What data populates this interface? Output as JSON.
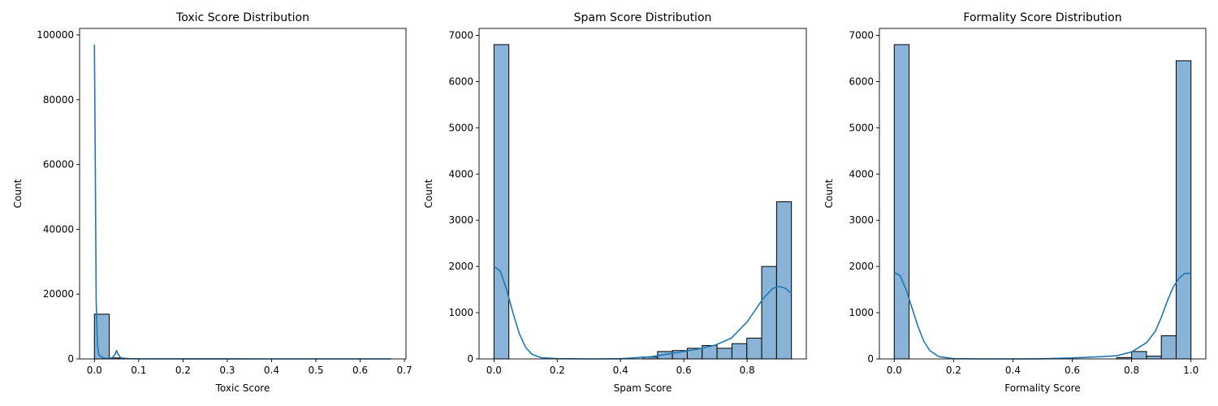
{
  "figure": {
    "background": "#ffffff",
    "bar_fill": "#89b4d7",
    "bar_stroke": "#000000",
    "kde_color": "#1f77b4"
  },
  "chart_data": [
    {
      "type": "bar",
      "subtype": "histogram_with_kde",
      "title": "Toxic Score Distribution",
      "xlabel": "Toxic Score",
      "ylabel": "Count",
      "xlim": [
        -0.0335,
        0.7035
      ],
      "ylim": [
        0,
        102000
      ],
      "xticks": [
        0.0,
        0.1,
        0.2,
        0.3,
        0.4,
        0.5,
        0.6,
        0.7
      ],
      "xtick_labels": [
        "0.0",
        "0.1",
        "0.2",
        "0.3",
        "0.4",
        "0.5",
        "0.6",
        "0.7"
      ],
      "yticks": [
        0,
        20000,
        40000,
        60000,
        80000,
        100000
      ],
      "ytick_labels": [
        "0",
        "20000",
        "40000",
        "60000",
        "80000",
        "100000"
      ],
      "bins": [
        {
          "x0": 0.0,
          "x1": 0.0335,
          "count": 13800
        },
        {
          "x0": 0.0335,
          "x1": 0.067,
          "count": 300
        },
        {
          "x0": 0.067,
          "x1": 0.1005,
          "count": 60
        },
        {
          "x0": 0.1005,
          "x1": 0.134,
          "count": 20
        }
      ],
      "kde": {
        "x": [
          0.0,
          0.002,
          0.004,
          0.007,
          0.01,
          0.02,
          0.03,
          0.04,
          0.047,
          0.05,
          0.053,
          0.06,
          0.08,
          0.1,
          0.2,
          0.3,
          0.4,
          0.5,
          0.6,
          0.67
        ],
        "y": [
          97000,
          60000,
          18000,
          4000,
          1200,
          300,
          150,
          300,
          1500,
          2600,
          1500,
          250,
          80,
          30,
          10,
          5,
          3,
          2,
          1,
          1
        ]
      },
      "grid": false,
      "legend": "none"
    },
    {
      "type": "bar",
      "subtype": "histogram_with_kde",
      "title": "Spam Score Distribution",
      "xlabel": "Spam Score",
      "ylabel": "Count",
      "xlim": [
        -0.047,
        0.987
      ],
      "ylim": [
        0,
        7150
      ],
      "xticks": [
        0.0,
        0.2,
        0.4,
        0.6,
        0.8
      ],
      "xtick_labels": [
        "0.0",
        "0.2",
        "0.4",
        "0.6",
        "0.8"
      ],
      "yticks": [
        0,
        1000,
        2000,
        3000,
        4000,
        5000,
        6000,
        7000
      ],
      "ytick_labels": [
        "0",
        "1000",
        "2000",
        "3000",
        "4000",
        "5000",
        "6000",
        "7000"
      ],
      "bins": [
        {
          "x0": 0.0,
          "x1": 0.047,
          "count": 6800
        },
        {
          "x0": 0.47,
          "x1": 0.517,
          "count": 40
        },
        {
          "x0": 0.517,
          "x1": 0.564,
          "count": 160
        },
        {
          "x0": 0.564,
          "x1": 0.611,
          "count": 180
        },
        {
          "x0": 0.611,
          "x1": 0.658,
          "count": 230
        },
        {
          "x0": 0.658,
          "x1": 0.705,
          "count": 290
        },
        {
          "x0": 0.705,
          "x1": 0.752,
          "count": 230
        },
        {
          "x0": 0.752,
          "x1": 0.799,
          "count": 330
        },
        {
          "x0": 0.799,
          "x1": 0.846,
          "count": 450
        },
        {
          "x0": 0.846,
          "x1": 0.893,
          "count": 2000
        },
        {
          "x0": 0.893,
          "x1": 0.94,
          "count": 3400
        }
      ],
      "kde": {
        "x": [
          0.0,
          0.02,
          0.04,
          0.06,
          0.08,
          0.1,
          0.12,
          0.15,
          0.2,
          0.3,
          0.4,
          0.5,
          0.6,
          0.65,
          0.7,
          0.75,
          0.8,
          0.85,
          0.88,
          0.9,
          0.92,
          0.94
        ],
        "y": [
          2000,
          1900,
          1500,
          1000,
          550,
          250,
          100,
          25,
          5,
          0,
          3,
          50,
          160,
          220,
          300,
          450,
          800,
          1300,
          1520,
          1570,
          1530,
          1420
        ]
      },
      "grid": false,
      "legend": "none"
    },
    {
      "type": "bar",
      "subtype": "histogram_with_kde",
      "title": "Formality Score Distribution",
      "xlabel": "Formality Score",
      "ylabel": "Count",
      "xlim": [
        -0.05,
        1.05
      ],
      "ylim": [
        0,
        7150
      ],
      "xticks": [
        0.0,
        0.2,
        0.4,
        0.6,
        0.8,
        1.0
      ],
      "xtick_labels": [
        "0.0",
        "0.2",
        "0.4",
        "0.6",
        "0.8",
        "1.0"
      ],
      "yticks": [
        0,
        1000,
        2000,
        3000,
        4000,
        5000,
        6000,
        7000
      ],
      "ytick_labels": [
        "0",
        "1000",
        "2000",
        "3000",
        "4000",
        "5000",
        "6000",
        "7000"
      ],
      "bins": [
        {
          "x0": 0.0,
          "x1": 0.05,
          "count": 6800
        },
        {
          "x0": 0.75,
          "x1": 0.8,
          "count": 30
        },
        {
          "x0": 0.8,
          "x1": 0.85,
          "count": 160
        },
        {
          "x0": 0.85,
          "x1": 0.9,
          "count": 60
        },
        {
          "x0": 0.9,
          "x1": 0.95,
          "count": 500
        },
        {
          "x0": 0.95,
          "x1": 1.0,
          "count": 6450
        }
      ],
      "kde": {
        "x": [
          0.0,
          0.02,
          0.04,
          0.06,
          0.08,
          0.1,
          0.12,
          0.15,
          0.2,
          0.3,
          0.4,
          0.5,
          0.6,
          0.7,
          0.75,
          0.8,
          0.85,
          0.88,
          0.9,
          0.92,
          0.94,
          0.96,
          0.98,
          1.0
        ],
        "y": [
          1870,
          1800,
          1500,
          1100,
          700,
          380,
          180,
          50,
          5,
          0,
          0,
          3,
          20,
          50,
          70,
          150,
          350,
          600,
          900,
          1250,
          1550,
          1750,
          1850,
          1850
        ]
      },
      "grid": false,
      "legend": "none"
    }
  ]
}
